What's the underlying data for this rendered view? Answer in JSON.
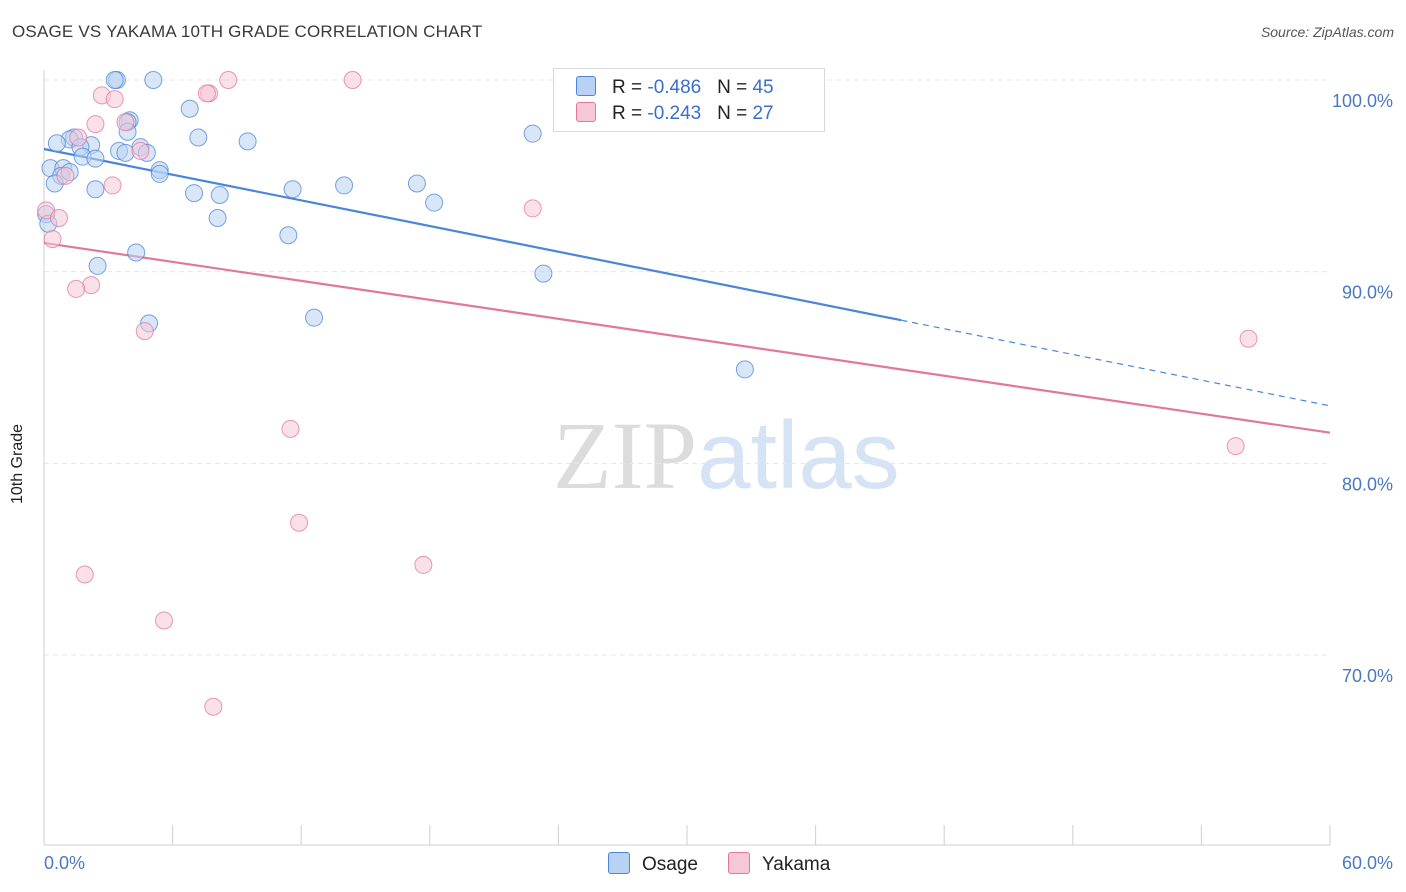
{
  "title": "OSAGE VS YAKAMA 10TH GRADE CORRELATION CHART",
  "source": "Source: ZipAtlas.com",
  "watermark": {
    "zip": "ZIP",
    "atlas": "atlas"
  },
  "legend": {
    "rows": [
      {
        "r_label": "R = ",
        "r_value": "-0.486",
        "n_label": "N = ",
        "n_value": "45"
      },
      {
        "r_label": "R = ",
        "r_value": "-0.243",
        "n_label": "N = ",
        "n_value": "27"
      }
    ]
  },
  "chart_data": {
    "type": "scatter",
    "title": "OSAGE VS YAKAMA 10TH GRADE CORRELATION CHART",
    "xlabel": "",
    "ylabel": "10th Grade",
    "xlim": [
      0,
      60
    ],
    "ylim": [
      60.5,
      103
    ],
    "x_tick_labels": [
      "0.0%",
      "60.0%"
    ],
    "y_ticks": [
      70,
      80,
      90,
      100
    ],
    "y_tick_labels": [
      "70.0%",
      "80.0%",
      "90.0%",
      "100.0%"
    ],
    "grid": true,
    "legend_position": "bottom-center",
    "colors": {
      "osage": "#4a86d8",
      "osage_fill": "#b9d2f3",
      "yakama": "#e2779b",
      "yakama_fill": "#f6c7d6"
    },
    "series": [
      {
        "name": "Osage",
        "r": -0.486,
        "n": 45,
        "trend": {
          "x0": 0,
          "y0": 96.4,
          "x1": 60,
          "y1": 83.0,
          "solid_until": 40
        },
        "points": [
          [
            3.4,
            100.0
          ],
          [
            3.3,
            100.0
          ],
          [
            5.1,
            100.0
          ],
          [
            6.8,
            98.5
          ],
          [
            4.0,
            97.9
          ],
          [
            3.9,
            97.8
          ],
          [
            3.9,
            97.3
          ],
          [
            1.4,
            97.0
          ],
          [
            1.2,
            96.9
          ],
          [
            0.6,
            96.7
          ],
          [
            7.2,
            97.0
          ],
          [
            9.5,
            96.8
          ],
          [
            2.2,
            96.6
          ],
          [
            1.7,
            96.5
          ],
          [
            4.5,
            96.5
          ],
          [
            3.5,
            96.3
          ],
          [
            3.8,
            96.2
          ],
          [
            4.8,
            96.2
          ],
          [
            1.8,
            96.0
          ],
          [
            2.4,
            95.9
          ],
          [
            0.3,
            95.4
          ],
          [
            0.9,
            95.4
          ],
          [
            0.8,
            95.0
          ],
          [
            5.4,
            95.3
          ],
          [
            5.4,
            95.1
          ],
          [
            0.5,
            94.6
          ],
          [
            2.4,
            94.3
          ],
          [
            7.0,
            94.1
          ],
          [
            8.2,
            94.0
          ],
          [
            11.6,
            94.3
          ],
          [
            14.0,
            94.5
          ],
          [
            17.4,
            94.6
          ],
          [
            18.2,
            93.6
          ],
          [
            8.1,
            92.8
          ],
          [
            11.4,
            91.9
          ],
          [
            2.5,
            90.3
          ],
          [
            4.3,
            91.0
          ],
          [
            12.6,
            87.6
          ],
          [
            4.9,
            87.3
          ],
          [
            22.8,
            97.2
          ],
          [
            23.3,
            89.9
          ],
          [
            32.7,
            84.9
          ],
          [
            0.1,
            93.0
          ],
          [
            0.2,
            92.5
          ],
          [
            1.2,
            95.2
          ]
        ]
      },
      {
        "name": "Yakama",
        "r": -0.243,
        "n": 27,
        "trend": {
          "x0": 0,
          "y0": 91.5,
          "x1": 60,
          "y1": 81.6
        },
        "points": [
          [
            14.4,
            100.0
          ],
          [
            8.6,
            100.0
          ],
          [
            7.7,
            99.3
          ],
          [
            7.6,
            99.3
          ],
          [
            2.7,
            99.2
          ],
          [
            3.3,
            99.0
          ],
          [
            3.8,
            97.8
          ],
          [
            2.4,
            97.7
          ],
          [
            1.6,
            97.0
          ],
          [
            4.5,
            96.3
          ],
          [
            1.0,
            95.0
          ],
          [
            3.2,
            94.5
          ],
          [
            0.1,
            93.2
          ],
          [
            0.7,
            92.8
          ],
          [
            0.4,
            91.7
          ],
          [
            2.2,
            89.3
          ],
          [
            1.5,
            89.1
          ],
          [
            4.7,
            86.9
          ],
          [
            11.5,
            81.8
          ],
          [
            11.9,
            76.9
          ],
          [
            17.7,
            74.7
          ],
          [
            1.9,
            74.2
          ],
          [
            5.6,
            71.8
          ],
          [
            7.9,
            67.3
          ],
          [
            22.8,
            93.3
          ],
          [
            56.2,
            86.5
          ],
          [
            55.6,
            80.9
          ]
        ]
      }
    ]
  }
}
